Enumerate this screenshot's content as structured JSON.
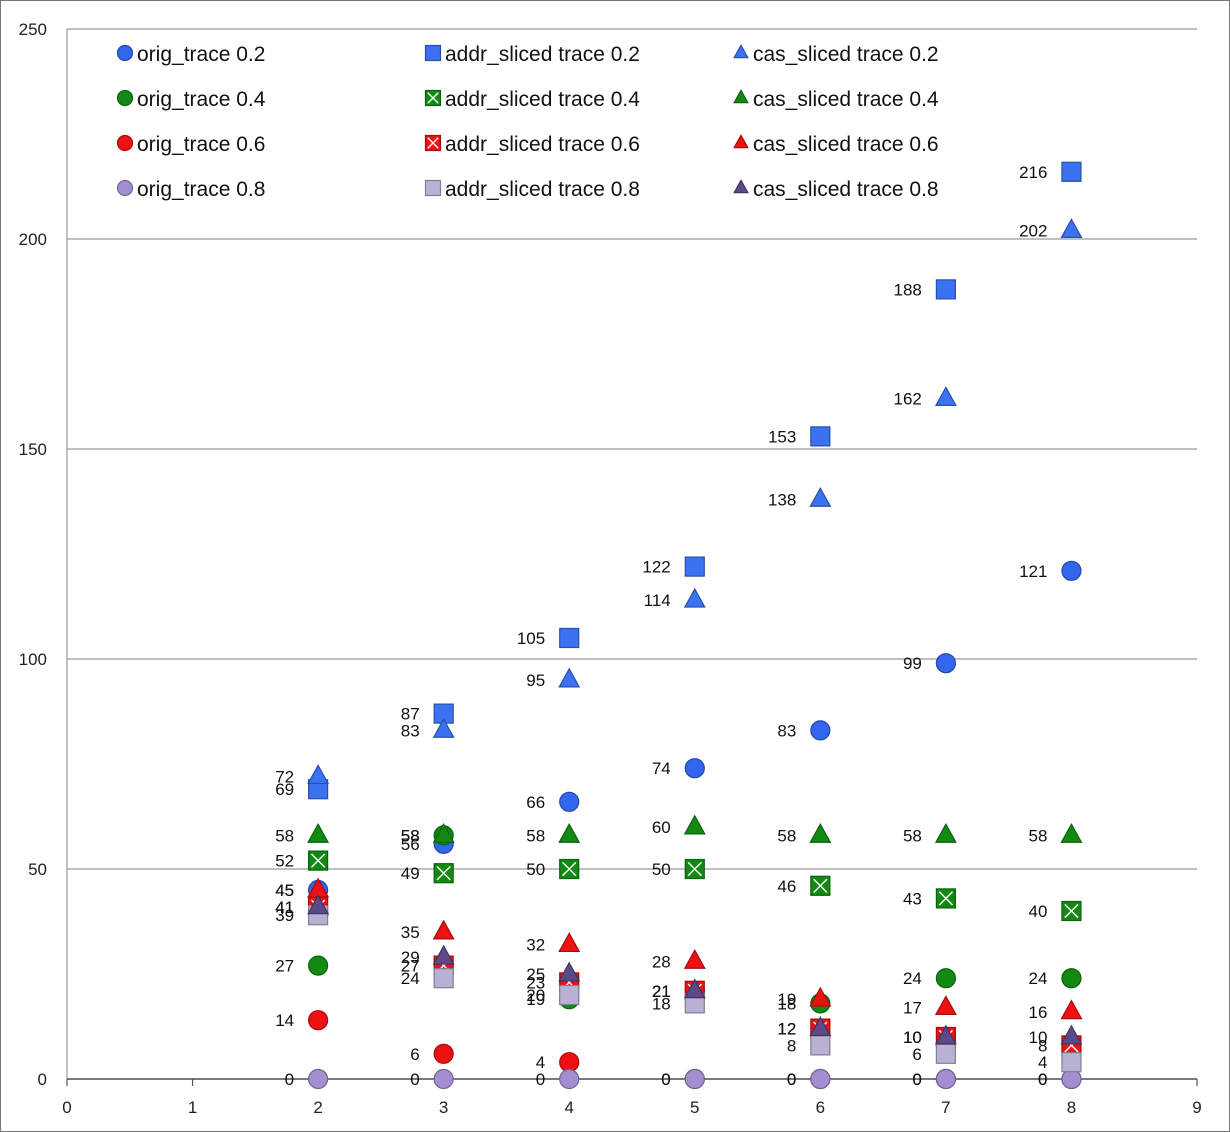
{
  "chart_data": {
    "type": "scatter",
    "xlim": [
      0,
      9
    ],
    "ylim": [
      0,
      250
    ],
    "xticks": [
      0,
      1,
      2,
      3,
      4,
      5,
      6,
      7,
      8,
      9
    ],
    "yticks": [
      0,
      50,
      100,
      150,
      200,
      250
    ],
    "grid": "horizontal",
    "legend_position": "top",
    "x": [
      2,
      3,
      4,
      5,
      6,
      7,
      8
    ],
    "series": [
      {
        "name": "orig_trace 0.2",
        "marker": "circle",
        "color": "#3366ee",
        "values": [
          45,
          56,
          66,
          74,
          83,
          99,
          121
        ]
      },
      {
        "name": "addr_sliced trace 0.2",
        "marker": "square",
        "color": "#3b72f2",
        "values": [
          69,
          87,
          105,
          122,
          153,
          188,
          216
        ]
      },
      {
        "name": "cas_sliced trace 0.2",
        "marker": "triangle",
        "color": "#3b72f2",
        "values": [
          72,
          83,
          95,
          114,
          138,
          162,
          202
        ]
      },
      {
        "name": "orig_trace 0.4",
        "marker": "circle",
        "color": "#128a12",
        "values": [
          27,
          58,
          19,
          21,
          18,
          24,
          24
        ]
      },
      {
        "name": "addr_sliced trace 0.4",
        "marker": "square-x",
        "color": "#128a12",
        "values": [
          52,
          49,
          50,
          50,
          46,
          43,
          40
        ]
      },
      {
        "name": "cas_sliced trace 0.4",
        "marker": "triangle",
        "color": "#128a12",
        "values": [
          58,
          58,
          58,
          60,
          58,
          58,
          58
        ]
      },
      {
        "name": "orig_trace 0.6",
        "marker": "circle",
        "color": "#ee1111",
        "values": [
          14,
          6,
          4,
          0,
          0,
          0,
          0
        ]
      },
      {
        "name": "addr_sliced trace 0.6",
        "marker": "square-x",
        "color": "#ee1111",
        "values": [
          41,
          27,
          23,
          21,
          12,
          10,
          8
        ]
      },
      {
        "name": "cas_sliced trace 0.6",
        "marker": "triangle",
        "color": "#ee1111",
        "values": [
          45,
          35,
          32,
          28,
          19,
          17,
          16
        ]
      },
      {
        "name": "orig_trace 0.8",
        "marker": "circle",
        "color": "#a38fd0",
        "values": [
          0,
          0,
          0,
          0,
          0,
          0,
          0
        ]
      },
      {
        "name": "addr_sliced trace 0.8",
        "marker": "square",
        "color": "#b9b1d3",
        "values": [
          39,
          24,
          20,
          18,
          8,
          6,
          4
        ]
      },
      {
        "name": "cas_sliced trace 0.8",
        "marker": "triangle",
        "color": "#5b4a86",
        "values": [
          41,
          29,
          25,
          21,
          12,
          10,
          10
        ]
      }
    ],
    "legend_order": [
      0,
      1,
      2,
      3,
      4,
      5,
      6,
      7,
      8,
      9,
      10,
      11
    ]
  }
}
